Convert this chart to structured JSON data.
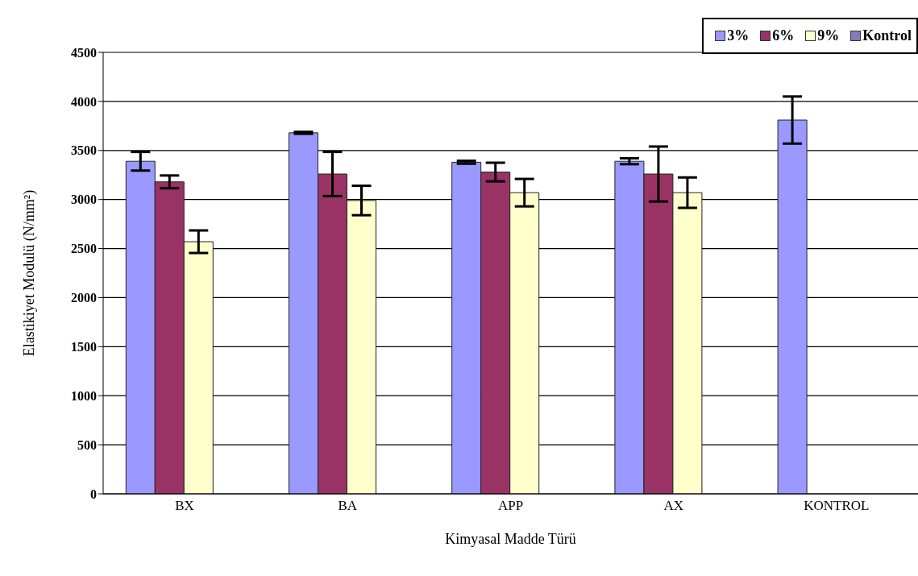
{
  "chart_data": {
    "type": "bar",
    "xlabel": "Kimyasal Madde Türü",
    "ylabel": "Elastikiyet Modulü  (N/mm²)",
    "categories": [
      "BX",
      "BA",
      "APP",
      "AX",
      "KONTROL"
    ],
    "series": [
      {
        "name": "3%",
        "color": "#9999ff",
        "values": [
          3390,
          3680,
          3380,
          3390,
          3810
        ],
        "errors": [
          95,
          10,
          15,
          30,
          240
        ]
      },
      {
        "name": "6%",
        "color": "#993366",
        "values": [
          3180,
          3260,
          3280,
          3260,
          null
        ],
        "errors": [
          65,
          225,
          95,
          280,
          null
        ]
      },
      {
        "name": "9%",
        "color": "#ffffcc",
        "values": [
          2570,
          2990,
          3070,
          3070,
          null
        ],
        "errors": [
          115,
          150,
          140,
          155,
          null
        ]
      },
      {
        "name": "Kontrol",
        "color": "#8877bb",
        "values": [
          null,
          null,
          null,
          null,
          null
        ]
      }
    ],
    "ylim": [
      0,
      4500
    ],
    "yticks": [
      0,
      500,
      1000,
      1500,
      2000,
      2500,
      3000,
      3500,
      4000,
      4500
    ],
    "grid": "y",
    "legend": "top right"
  }
}
